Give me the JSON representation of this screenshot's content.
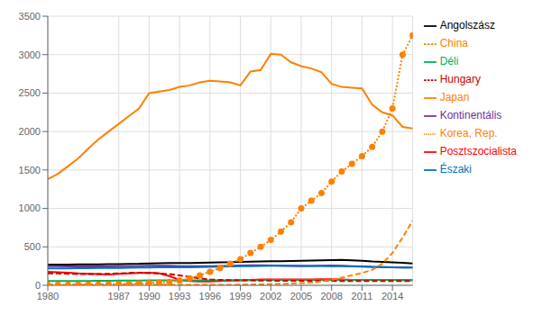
{
  "chart_data": {
    "type": "line",
    "x": [
      1980,
      1981,
      1982,
      1983,
      1984,
      1985,
      1986,
      1987,
      1988,
      1989,
      1990,
      1991,
      1992,
      1993,
      1994,
      1995,
      1996,
      1997,
      1998,
      1999,
      2000,
      2001,
      2002,
      2003,
      2004,
      2005,
      2006,
      2007,
      2008,
      2009,
      2010,
      2011,
      2012,
      2013,
      2014,
      2015,
      2016
    ],
    "series": [
      {
        "name": "Angolszász",
        "color": "#000000",
        "line_style": "solid",
        "values": [
          270,
          270,
          270,
          272,
          272,
          273,
          274,
          276,
          278,
          280,
          285,
          288,
          290,
          290,
          290,
          292,
          295,
          298,
          300,
          305,
          308,
          310,
          312,
          314,
          316,
          320,
          323,
          325,
          328,
          330,
          325,
          318,
          310,
          305,
          298,
          292,
          285
        ]
      },
      {
        "name": "Kontinentális",
        "color": "#7030A0",
        "line_style": "solid",
        "values": [
          250,
          248,
          246,
          245,
          245,
          246,
          247,
          248,
          250,
          252,
          255,
          255,
          254,
          250,
          248,
          248,
          250,
          252,
          255,
          258,
          260,
          260,
          258,
          255,
          252,
          250,
          252,
          255,
          258,
          255,
          250,
          245,
          240,
          238,
          235,
          232,
          230
        ]
      },
      {
        "name": "Posztszocialista",
        "color": "#FF0000",
        "line_style": "solid",
        "values": [
          175,
          170,
          165,
          155,
          150,
          145,
          140,
          150,
          155,
          160,
          165,
          155,
          120,
          70,
          55,
          50,
          50,
          55,
          60,
          65,
          70,
          75,
          75,
          75,
          75,
          75,
          75,
          80,
          80,
          75,
          70,
          70,
          70,
          70,
          70,
          68,
          65
        ]
      },
      {
        "name": "Északi",
        "color": "#0070C0",
        "line_style": "solid",
        "values": [
          220,
          220,
          220,
          222,
          222,
          224,
          225,
          226,
          228,
          230,
          232,
          234,
          235,
          235,
          235,
          237,
          240,
          242,
          245,
          248,
          250,
          252,
          254,
          255,
          256,
          255,
          253,
          252,
          250,
          248,
          245,
          243,
          240,
          238,
          235,
          232,
          230
        ]
      },
      {
        "name": "Déli",
        "color": "#00B050",
        "line_style": "solid",
        "values": [
          55,
          55,
          55,
          56,
          57,
          58,
          59,
          60,
          61,
          62,
          63,
          64,
          65,
          65,
          65,
          65,
          65,
          65,
          65,
          66,
          67,
          68,
          69,
          70,
          70,
          70,
          70,
          70,
          70,
          70,
          70,
          70,
          70,
          70,
          70,
          70,
          70
        ]
      },
      {
        "name": "Hungary",
        "color": "#CC0000",
        "line_style": "dashed",
        "values": [
          155,
          155,
          150,
          145,
          145,
          145,
          150,
          155,
          160,
          165,
          160,
          155,
          145,
          130,
          110,
          90,
          75,
          70,
          68,
          65,
          63,
          62,
          60,
          58,
          58,
          58,
          58,
          58,
          58,
          55,
          55,
          55,
          55,
          55,
          55,
          55,
          55
        ]
      },
      {
        "name": "Japan",
        "color": "#FF8000",
        "line_style": "solid",
        "values": [
          1380,
          1450,
          1550,
          1650,
          1780,
          1900,
          2000,
          2100,
          2200,
          2300,
          2500,
          2520,
          2540,
          2580,
          2600,
          2640,
          2660,
          2650,
          2640,
          2600,
          2780,
          2800,
          3010,
          3000,
          2900,
          2850,
          2820,
          2770,
          2620,
          2580,
          2570,
          2560,
          2350,
          2250,
          2210,
          2060,
          2040
        ]
      },
      {
        "name": "Korea, Rep.",
        "color": "#FF8000",
        "line_style": "dotted",
        "marker": "circle",
        "values": [
          5,
          6,
          7,
          8,
          9,
          10,
          12,
          15,
          18,
          22,
          28,
          35,
          45,
          60,
          90,
          130,
          175,
          225,
          280,
          340,
          420,
          500,
          590,
          700,
          820,
          1000,
          1100,
          1200,
          1350,
          1480,
          1580,
          1680,
          1800,
          2000,
          2300,
          3000,
          3250
        ]
      },
      {
        "name": "China",
        "color": "#FF8000",
        "line_style": "dashed",
        "values": [
          5,
          5,
          5,
          5,
          5,
          5,
          5,
          5,
          5,
          5,
          5,
          5,
          5,
          5,
          5,
          5,
          5,
          5,
          5,
          8,
          10,
          12,
          15,
          18,
          22,
          28,
          35,
          50,
          70,
          100,
          130,
          160,
          200,
          280,
          420,
          620,
          840
        ]
      }
    ],
    "xlim": [
      1980,
      2016
    ],
    "xticks": [
      1980,
      1987,
      1990,
      1993,
      1996,
      1999,
      2002,
      2005,
      2008,
      2011,
      2014
    ],
    "ylim": [
      0,
      3500
    ],
    "yticks": [
      0,
      500,
      1000,
      1500,
      2000,
      2500,
      3000,
      3500
    ],
    "grid": true,
    "legend": "right"
  }
}
